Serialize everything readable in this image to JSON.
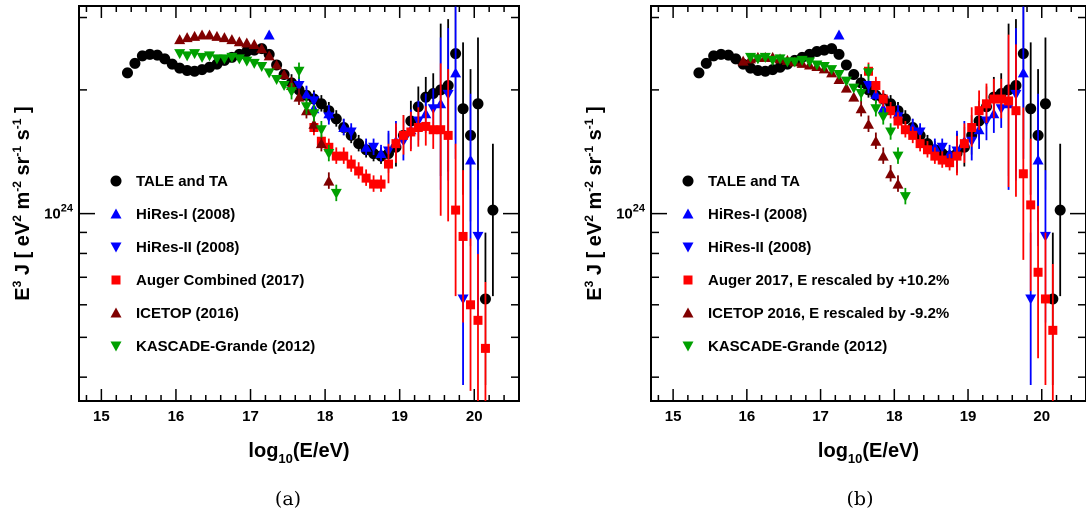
{
  "chart_data": [
    {
      "type": "scatter",
      "panel_label": "(a)",
      "xlabel_main": "log",
      "xlabel_sub": "10",
      "xlabel_rest": "(E/eV)",
      "ylabel_main": "E",
      "ylabel_sup": "3",
      "ylabel_rest": " J  [ eV",
      "ylabel_unit2": " m",
      "ylabel_unit3": " sr",
      "ylabel_unit4": " s",
      "ylabel_sup2": "2",
      "ylabel_sup3": "-2",
      "ylabel_sup4": "-1",
      "ylabel_sup5": "-1",
      "ylabel_end": "]",
      "xlim": [
        14.7,
        20.6
      ],
      "log_y": true,
      "ylim": [
        3.5e+23,
        3.2e+24
      ],
      "x_ticks": [
        "15",
        "16",
        "17",
        "18",
        "19",
        "20"
      ],
      "y_tick_label_base": "10",
      "y_tick_label_exp": "24",
      "y_tick_value": 1e+24,
      "grid": false,
      "legend_placement": "lower-left",
      "series": [
        {
          "name": "TALE and TA",
          "color": "#000000",
          "marker": "circle",
          "x": [
            15.35,
            15.45,
            15.55,
            15.65,
            15.75,
            15.85,
            15.95,
            16.05,
            16.15,
            16.25,
            16.35,
            16.45,
            16.55,
            16.65,
            16.75,
            16.85,
            16.95,
            17.05,
            17.15,
            17.25,
            17.35,
            17.45,
            17.55,
            17.65,
            17.75,
            17.85,
            17.95,
            18.05,
            18.15,
            18.25,
            18.35,
            18.45,
            18.55,
            18.65,
            18.75,
            18.85,
            18.95,
            19.05,
            19.15,
            19.25,
            19.35,
            19.45,
            19.55,
            19.65,
            19.75,
            19.85,
            19.95,
            20.05,
            20.15,
            20.25
          ],
          "y": [
            2.2e+24,
            2.32e+24,
            2.42e+24,
            2.44e+24,
            2.43e+24,
            2.38e+24,
            2.31e+24,
            2.26e+24,
            2.23e+24,
            2.22e+24,
            2.24e+24,
            2.27e+24,
            2.31e+24,
            2.36e+24,
            2.4e+24,
            2.44e+24,
            2.48e+24,
            2.5e+24,
            2.52e+24,
            2.44e+24,
            2.3e+24,
            2.18e+24,
            2.08e+24,
            2e+24,
            1.94e+24,
            1.9e+24,
            1.85e+24,
            1.78e+24,
            1.7e+24,
            1.62e+24,
            1.55e+24,
            1.48e+24,
            1.43e+24,
            1.4e+24,
            1.38e+24,
            1.4e+24,
            1.45e+24,
            1.55e+24,
            1.68e+24,
            1.82e+24,
            1.92e+24,
            1.96e+24,
            2e+24,
            2.05e+24,
            2.45e+24,
            1.8e+24,
            1.55e+24,
            1.85e+24,
            6.2e+23,
            1.02e+24
          ]
        },
        {
          "name": "HiRes-I (2008)",
          "color": "#0000ff",
          "marker": "triangle-up",
          "x": [
            17.25,
            17.75,
            17.85,
            18.05,
            18.25,
            18.55,
            18.75,
            18.95,
            19.15,
            19.35,
            19.55,
            19.75,
            19.95
          ],
          "y": [
            2.72e+24,
            1.95e+24,
            1.8e+24,
            1.75e+24,
            1.62e+24,
            1.45e+24,
            1.4e+24,
            1.5e+24,
            1.6e+24,
            1.75e+24,
            1.85e+24,
            2.2e+24,
            1.35e+24
          ]
        },
        {
          "name": "HiRes-II (2008)",
          "color": "#0000ff",
          "marker": "triangle-down",
          "x": [
            17.65,
            17.85,
            18.05,
            18.35,
            18.65,
            18.85,
            19.05,
            19.25,
            19.45,
            19.65,
            19.85,
            20.05
          ],
          "y": [
            2.05e+24,
            1.88e+24,
            1.72e+24,
            1.58e+24,
            1.45e+24,
            1.42e+24,
            1.5e+24,
            1.68e+24,
            1.8e+24,
            1.95e+24,
            6.2e+23,
            8.8e+23
          ]
        },
        {
          "name": "Auger Combined (2017)",
          "color": "#ff0000",
          "marker": "square",
          "x": [
            17.85,
            17.95,
            18.05,
            18.15,
            18.25,
            18.35,
            18.45,
            18.55,
            18.65,
            18.75,
            18.85,
            18.95,
            19.05,
            19.15,
            19.25,
            19.35,
            19.45,
            19.55,
            19.65,
            19.75,
            19.85,
            19.95,
            20.05,
            20.15
          ],
          "y": [
            1.62e+24,
            1.5e+24,
            1.45e+24,
            1.38e+24,
            1.38e+24,
            1.32e+24,
            1.27e+24,
            1.22e+24,
            1.18e+24,
            1.18e+24,
            1.32e+24,
            1.48e+24,
            1.55e+24,
            1.58e+24,
            1.62e+24,
            1.63e+24,
            1.6e+24,
            1.6e+24,
            1.55e+24,
            1.02e+24,
            8.8e+23,
            6e+23,
            5.5e+23,
            4.7e+23
          ]
        },
        {
          "name": "ICETOP (2016)",
          "color": "#800000",
          "marker": "triangle-up",
          "x": [
            16.05,
            16.15,
            16.25,
            16.35,
            16.45,
            16.55,
            16.65,
            16.75,
            16.85,
            16.95,
            17.05,
            17.15,
            17.25,
            17.35,
            17.45,
            17.55,
            17.65,
            17.75,
            17.85,
            17.95,
            18.05
          ],
          "y": [
            2.65e+24,
            2.68e+24,
            2.7e+24,
            2.72e+24,
            2.72e+24,
            2.7e+24,
            2.68e+24,
            2.65e+24,
            2.62e+24,
            2.6e+24,
            2.58e+24,
            2.52e+24,
            2.42e+24,
            2.3e+24,
            2.18e+24,
            2.05e+24,
            1.92e+24,
            1.78e+24,
            1.65e+24,
            1.48e+24,
            1.2e+24
          ]
        },
        {
          "name": "KASCADE-Grande (2012)",
          "color": "#00a000",
          "marker": "triangle-down",
          "x": [
            16.05,
            16.15,
            16.25,
            16.35,
            16.45,
            16.55,
            16.65,
            16.75,
            16.85,
            16.95,
            17.05,
            17.15,
            17.25,
            17.35,
            17.45,
            17.55,
            17.65,
            17.75,
            17.85,
            17.95,
            18.05,
            18.15
          ],
          "y": [
            2.45e+24,
            2.42e+24,
            2.45e+24,
            2.4e+24,
            2.42e+24,
            2.38e+24,
            2.38e+24,
            2.4e+24,
            2.38e+24,
            2.35e+24,
            2.32e+24,
            2.28e+24,
            2.2e+24,
            2.12e+24,
            2.05e+24,
            1.98e+24,
            2.22e+24,
            1.82e+24,
            1.75e+24,
            1.6e+24,
            1.4e+24,
            1.12e+24
          ]
        }
      ]
    },
    {
      "type": "scatter",
      "panel_label": "(b)",
      "xlabel_main": "log",
      "xlabel_sub": "10",
      "xlabel_rest": "(E/eV)",
      "ylabel_main": "E",
      "ylabel_sup": "3",
      "ylabel_rest": " J  [ eV",
      "ylabel_unit2": " m",
      "ylabel_unit3": " sr",
      "ylabel_unit4": " s",
      "ylabel_sup2": "2",
      "ylabel_sup3": "-2",
      "ylabel_sup4": "-1",
      "ylabel_sup5": "-1",
      "ylabel_end": "]",
      "xlim": [
        14.7,
        20.6
      ],
      "log_y": true,
      "ylim": [
        3.5e+23,
        3.2e+24
      ],
      "x_ticks": [
        "15",
        "16",
        "17",
        "18",
        "19",
        "20"
      ],
      "y_tick_label_base": "10",
      "y_tick_label_exp": "24",
      "y_tick_value": 1e+24,
      "grid": false,
      "legend_placement": "lower-left",
      "series": [
        {
          "name": "TALE and TA",
          "color": "#000000",
          "marker": "circle",
          "x": [
            15.35,
            15.45,
            15.55,
            15.65,
            15.75,
            15.85,
            15.95,
            16.05,
            16.15,
            16.25,
            16.35,
            16.45,
            16.55,
            16.65,
            16.75,
            16.85,
            16.95,
            17.05,
            17.15,
            17.25,
            17.35,
            17.45,
            17.55,
            17.65,
            17.75,
            17.85,
            17.95,
            18.05,
            18.15,
            18.25,
            18.35,
            18.45,
            18.55,
            18.65,
            18.75,
            18.85,
            18.95,
            19.05,
            19.15,
            19.25,
            19.35,
            19.45,
            19.55,
            19.65,
            19.75,
            19.85,
            19.95,
            20.05,
            20.15,
            20.25
          ],
          "y": [
            2.2e+24,
            2.32e+24,
            2.42e+24,
            2.44e+24,
            2.43e+24,
            2.38e+24,
            2.31e+24,
            2.26e+24,
            2.23e+24,
            2.22e+24,
            2.24e+24,
            2.27e+24,
            2.31e+24,
            2.36e+24,
            2.4e+24,
            2.44e+24,
            2.48e+24,
            2.5e+24,
            2.52e+24,
            2.44e+24,
            2.3e+24,
            2.18e+24,
            2.08e+24,
            2e+24,
            1.94e+24,
            1.9e+24,
            1.85e+24,
            1.78e+24,
            1.7e+24,
            1.62e+24,
            1.55e+24,
            1.48e+24,
            1.43e+24,
            1.4e+24,
            1.38e+24,
            1.4e+24,
            1.45e+24,
            1.55e+24,
            1.68e+24,
            1.82e+24,
            1.92e+24,
            1.96e+24,
            2e+24,
            2.05e+24,
            2.45e+24,
            1.8e+24,
            1.55e+24,
            1.85e+24,
            6.2e+23,
            1.02e+24
          ]
        },
        {
          "name": "HiRes-I (2008)",
          "color": "#0000ff",
          "marker": "triangle-up",
          "x": [
            17.25,
            17.75,
            17.85,
            18.05,
            18.25,
            18.55,
            18.75,
            18.95,
            19.15,
            19.35,
            19.55,
            19.75,
            19.95
          ],
          "y": [
            2.72e+24,
            1.95e+24,
            1.8e+24,
            1.75e+24,
            1.62e+24,
            1.45e+24,
            1.4e+24,
            1.5e+24,
            1.6e+24,
            1.75e+24,
            1.85e+24,
            2.2e+24,
            1.35e+24
          ]
        },
        {
          "name": "HiRes-II (2008)",
          "color": "#0000ff",
          "marker": "triangle-down",
          "x": [
            17.65,
            17.85,
            18.05,
            18.35,
            18.65,
            18.85,
            19.05,
            19.25,
            19.45,
            19.65,
            19.85,
            20.05
          ],
          "y": [
            2.05e+24,
            1.88e+24,
            1.72e+24,
            1.58e+24,
            1.45e+24,
            1.42e+24,
            1.5e+24,
            1.68e+24,
            1.8e+24,
            1.95e+24,
            6.2e+23,
            8.8e+23
          ]
        },
        {
          "name": "Auger 2017, E rescaled by +10.2%",
          "color": "#ff0000",
          "marker": "square",
          "x": [
            17.65,
            17.75,
            17.85,
            17.95,
            18.05,
            18.15,
            18.25,
            18.35,
            18.45,
            18.55,
            18.65,
            18.75,
            18.85,
            18.95,
            19.05,
            19.15,
            19.25,
            19.35,
            19.45,
            19.55,
            19.65,
            19.75,
            19.85,
            19.95,
            20.05,
            20.15
          ],
          "y": [
            2.22e+24,
            2.05e+24,
            1.9e+24,
            1.78e+24,
            1.68e+24,
            1.6e+24,
            1.55e+24,
            1.48e+24,
            1.43e+24,
            1.38e+24,
            1.35e+24,
            1.33e+24,
            1.38e+24,
            1.48e+24,
            1.62e+24,
            1.78e+24,
            1.85e+24,
            1.9e+24,
            1.9e+24,
            1.88e+24,
            1.78e+24,
            1.25e+24,
            1.05e+24,
            7.2e+23,
            6.2e+23,
            5.2e+23
          ]
        },
        {
          "name": "ICETOP 2016, E rescaled by -9.2%",
          "color": "#800000",
          "marker": "triangle-up",
          "x": [
            15.95,
            16.05,
            16.15,
            16.25,
            16.35,
            16.45,
            16.55,
            16.65,
            16.75,
            16.85,
            16.95,
            17.05,
            17.15,
            17.25,
            17.35,
            17.45,
            17.55,
            17.65,
            17.75,
            17.85,
            17.95,
            18.05
          ],
          "y": [
            2.35e+24,
            2.38e+24,
            2.4e+24,
            2.4e+24,
            2.4e+24,
            2.38e+24,
            2.36e+24,
            2.34e+24,
            2.32e+24,
            2.3e+24,
            2.28e+24,
            2.25e+24,
            2.2e+24,
            2.12e+24,
            2.02e+24,
            1.92e+24,
            1.8e+24,
            1.65e+24,
            1.5e+24,
            1.38e+24,
            1.25e+24,
            1.18e+24
          ]
        },
        {
          "name": "KASCADE-Grande (2012)",
          "color": "#00a000",
          "marker": "triangle-down",
          "x": [
            16.05,
            16.15,
            16.25,
            16.35,
            16.45,
            16.55,
            16.65,
            16.75,
            16.85,
            16.95,
            17.05,
            17.15,
            17.25,
            17.35,
            17.45,
            17.55,
            17.65,
            17.75,
            17.85,
            17.95,
            18.05,
            18.15
          ],
          "y": [
            2.4e+24,
            2.38e+24,
            2.4e+24,
            2.36e+24,
            2.38e+24,
            2.34e+24,
            2.34e+24,
            2.36e+24,
            2.34e+24,
            2.3e+24,
            2.28e+24,
            2.24e+24,
            2.18e+24,
            2.1e+24,
            2.02e+24,
            1.96e+24,
            2.2e+24,
            1.8e+24,
            1.72e+24,
            1.58e+24,
            1.38e+24,
            1.1e+24
          ]
        }
      ]
    }
  ]
}
